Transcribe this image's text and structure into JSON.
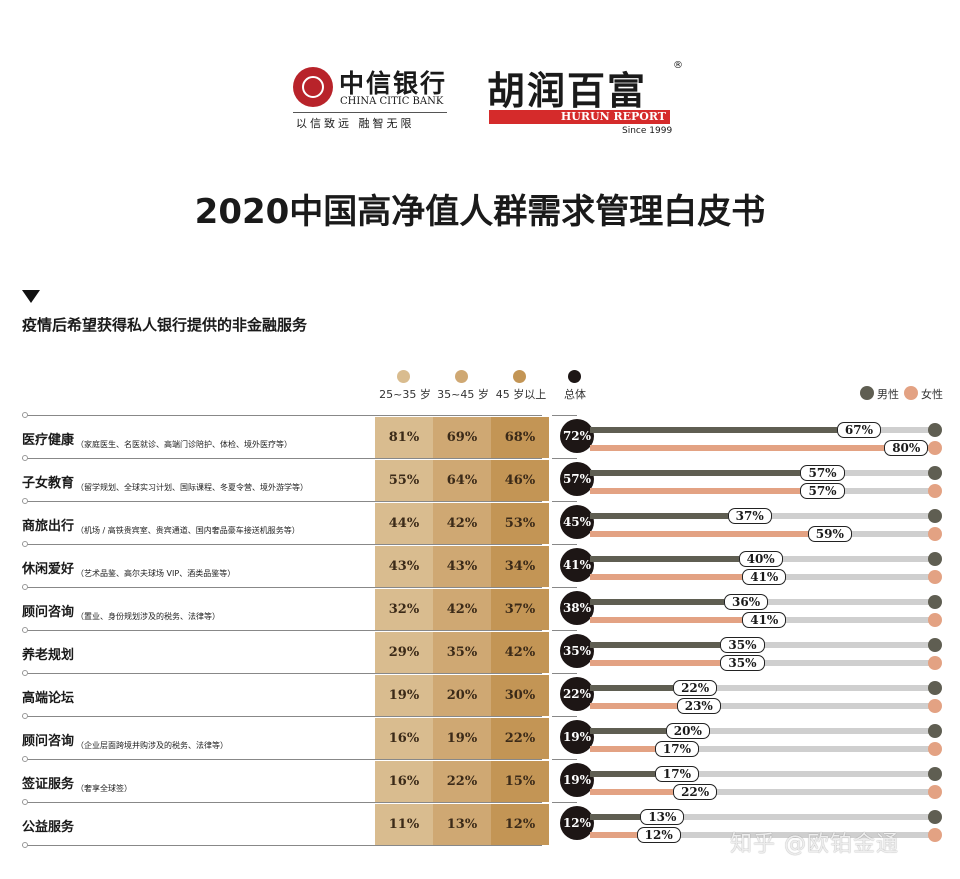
{
  "header": {
    "citic": {
      "name_cn": "中信银行",
      "name_en": "CHINA CITIC BANK",
      "slogan": "以信致远  融智无限"
    },
    "hurun": {
      "name_cn": "胡润百富",
      "name_en": "HURUN REPORT",
      "since": "Since 1999",
      "registered": "®"
    },
    "title": "2020中国高净值人群需求管理白皮书",
    "subtitle": "疫情后希望获得私人银行提供的非金融服务"
  },
  "colors": {
    "age_25_35": "#d9bc8f",
    "age_35_45": "#cfa873",
    "age_45_plus": "#c39555",
    "overall": "#1d1615",
    "male": "#5f5e52",
    "female": "#e3a283",
    "track": "#cfcfcf"
  },
  "watermark": "知乎 @欧铂金通",
  "chart_data": {
    "type": "table",
    "legend": {
      "age_groups": [
        "25~35 岁",
        "35~45 岁",
        "45 岁以上"
      ],
      "overall": "总体",
      "male": "男性",
      "female": "女性"
    },
    "rows": [
      {
        "name": "医疗健康",
        "note": "（家庭医生、名医就诊、高端门诊陪护、体检、境外医疗等）",
        "age": [
          "81%",
          "69%",
          "68%"
        ],
        "overall": "72%",
        "male": 67,
        "female": 80
      },
      {
        "name": "子女教育",
        "note": "（留学规划、全球实习计划、国际课程、冬夏令营、境外游学等）",
        "age": [
          "55%",
          "64%",
          "46%"
        ],
        "overall": "57%",
        "male": 57,
        "female": 57
      },
      {
        "name": "商旅出行",
        "note": "（机场 / 高铁贵宾室、贵宾通道、国内奢品豪车接送机服务等）",
        "age": [
          "44%",
          "42%",
          "53%"
        ],
        "overall": "45%",
        "male": 37,
        "female": 59
      },
      {
        "name": "休闲爱好",
        "note": "（艺术品鉴、高尔夫球场 VIP、酒类品鉴等）",
        "age": [
          "43%",
          "43%",
          "34%"
        ],
        "overall": "41%",
        "male": 40,
        "female": 41
      },
      {
        "name": "顾问咨询",
        "note": "（置业、身份规划涉及的税务、法律等）",
        "age": [
          "32%",
          "42%",
          "37%"
        ],
        "overall": "38%",
        "male": 36,
        "female": 41
      },
      {
        "name": "养老规划",
        "note": "",
        "age": [
          "29%",
          "35%",
          "42%"
        ],
        "overall": "35%",
        "male": 35,
        "female": 35
      },
      {
        "name": "高端论坛",
        "note": "",
        "age": [
          "19%",
          "20%",
          "30%"
        ],
        "overall": "22%",
        "male": 22,
        "female": 23
      },
      {
        "name": "顾问咨询",
        "note": "（企业层面跨境并购涉及的税务、法律等）",
        "age": [
          "16%",
          "19%",
          "22%"
        ],
        "overall": "19%",
        "male": 20,
        "female": 17
      },
      {
        "name": "签证服务",
        "note": "（奢享全球签）",
        "age": [
          "16%",
          "22%",
          "15%"
        ],
        "overall": "19%",
        "male": 17,
        "female": 22
      },
      {
        "name": "公益服务",
        "note": "",
        "age": [
          "11%",
          "13%",
          "12%"
        ],
        "overall": "12%",
        "male": 13,
        "female": 12
      }
    ]
  }
}
